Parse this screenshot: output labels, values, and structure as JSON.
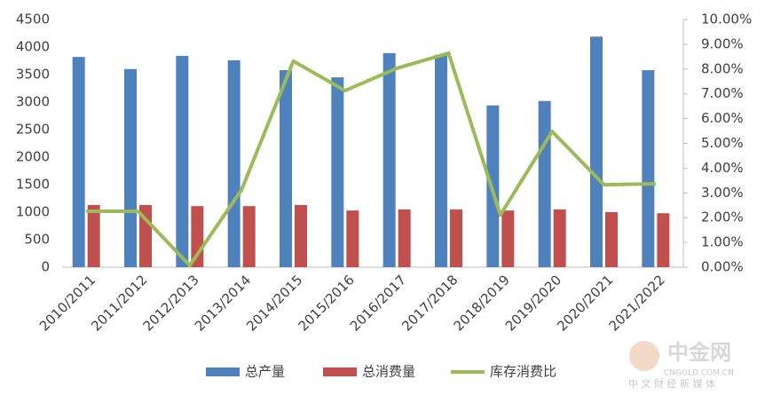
{
  "chart_data": {
    "type": "bar_line",
    "categories": [
      "2010/2011",
      "2011/2012",
      "2012/2013",
      "2013/2014",
      "2014/2015",
      "2015/2016",
      "2016/2017",
      "2017/2018",
      "2018/2019",
      "2019/2020",
      "2020/2021",
      "2021/2022"
    ],
    "series": [
      {
        "name": "总产量",
        "type": "bar",
        "color": "#4f81bd",
        "values": [
          3820,
          3600,
          3840,
          3760,
          3580,
          3450,
          3890,
          3860,
          2940,
          3020,
          4190,
          3580
        ]
      },
      {
        "name": "总消费量",
        "type": "bar",
        "color": "#c0504d",
        "values": [
          1130,
          1130,
          1110,
          1110,
          1130,
          1030,
          1050,
          1050,
          1030,
          1050,
          1000,
          980
        ]
      },
      {
        "name": "库存消费比",
        "type": "line",
        "axis": "y2",
        "color": "#9bbb59",
        "values": [
          2.26,
          2.26,
          0.07,
          3.12,
          8.32,
          7.13,
          8.03,
          8.64,
          2.11,
          5.48,
          3.33,
          3.37
        ]
      }
    ],
    "ylim": [
      0,
      4500
    ],
    "yticks": [
      0,
      500,
      1000,
      1500,
      2000,
      2500,
      3000,
      3500,
      4000,
      4500
    ],
    "y2lim": [
      0,
      10
    ],
    "y2ticks": [
      {
        "value": 0,
        "label": "0.00%"
      },
      {
        "value": 1,
        "label": "1.00%"
      },
      {
        "value": 2,
        "label": "2.00%"
      },
      {
        "value": 3,
        "label": "3.00%"
      },
      {
        "value": 4,
        "label": "4.00%"
      },
      {
        "value": 5,
        "label": "5.00%"
      },
      {
        "value": 6,
        "label": "6.00%"
      },
      {
        "value": 7,
        "label": "7.00%"
      },
      {
        "value": 8,
        "label": "8.00%"
      },
      {
        "value": 9,
        "label": "9.00%"
      },
      {
        "value": 10,
        "label": "10.00%"
      }
    ],
    "grid": false,
    "legend": "bottom",
    "watermark": {
      "name": "中金网",
      "url": "CNGOLD.COM.CN",
      "tagline": "中 文 财 经 新 媒 体"
    }
  }
}
